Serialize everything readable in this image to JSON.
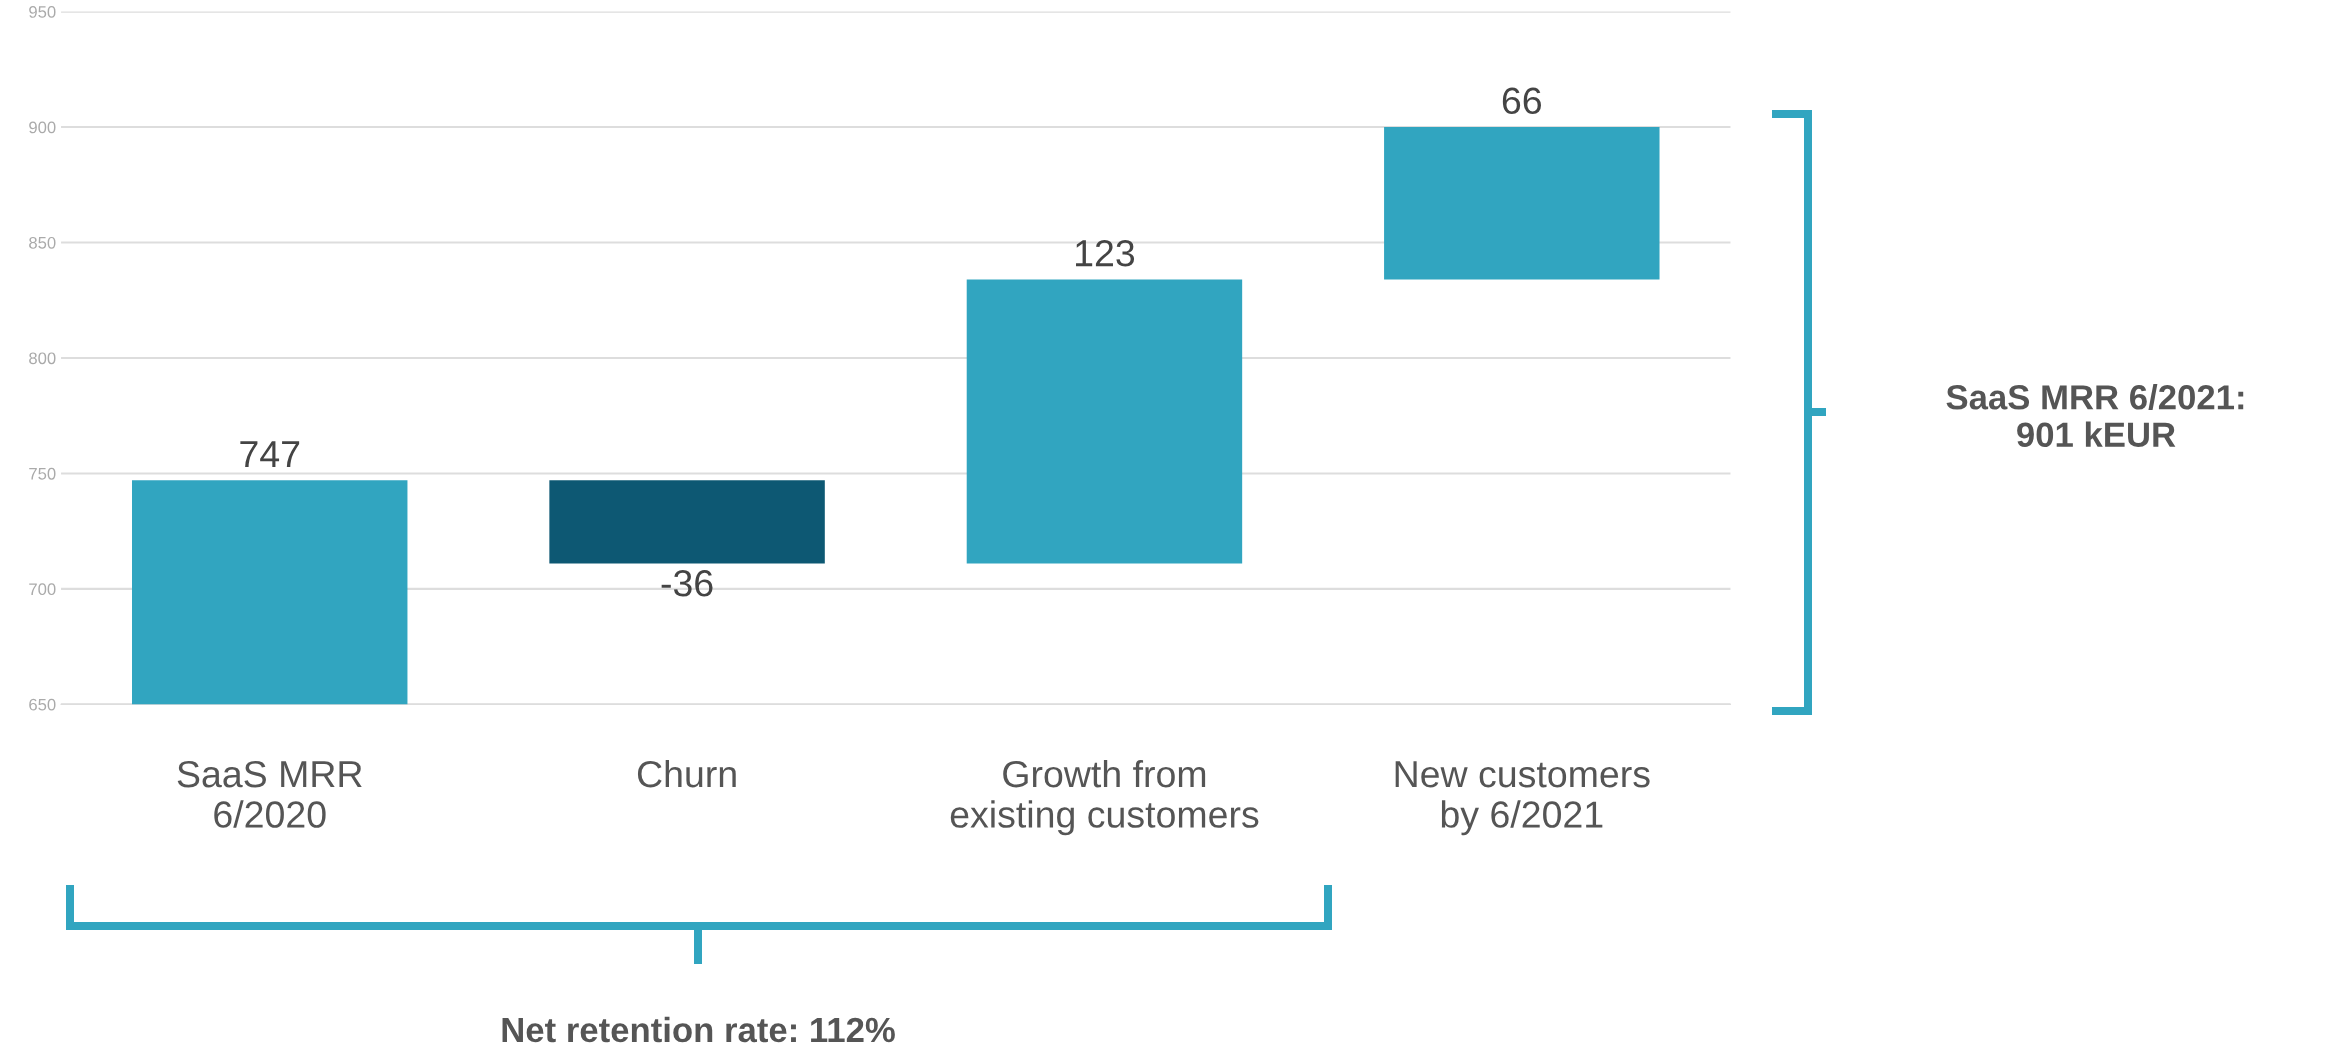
{
  "chart_data": {
    "type": "bar",
    "categories": [
      "SaaS MRR\n6/2020",
      "Churn",
      "Growth from\nexisting customers",
      "New customers\nby 6/2021"
    ],
    "values": [
      747,
      -36,
      123,
      66
    ],
    "base": [
      0,
      747,
      711,
      834
    ],
    "colors": [
      "#31a5c0",
      "#0d5873",
      "#31a5c0",
      "#31a5c0"
    ],
    "ylim": [
      650,
      950
    ],
    "yticks": [
      650,
      700,
      750,
      800,
      850,
      900,
      950
    ],
    "grid": "y",
    "data_labels": true,
    "annotations": [
      "SaaS MRR 6/2021:\n901 kEUR",
      "Net retention rate: 112%"
    ]
  }
}
